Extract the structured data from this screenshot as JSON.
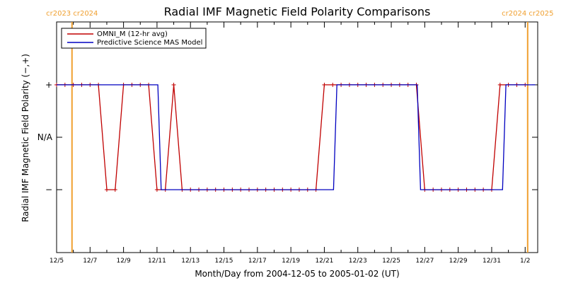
{
  "chart_data": {
    "type": "line",
    "title": "Radial IMF Magnetic Field Polarity Comparisons",
    "xlabel": "Month/Day from 2004-12-05 to 2005-01-02 (UT)",
    "ylabel": "Radial IMF Magnetic Field Polarity (−,+)",
    "x_tick_labels": [
      "12/5",
      "12/7",
      "12/9",
      "12/11",
      "12/13",
      "12/15",
      "12/17",
      "12/19",
      "12/21",
      "12/23",
      "12/25",
      "12/27",
      "12/29",
      "12/31",
      "1/2"
    ],
    "x_tick_days": [
      0,
      2,
      4,
      6,
      8,
      10,
      12,
      14,
      16,
      18,
      20,
      22,
      24,
      26,
      28
    ],
    "xlim_days": [
      0,
      28.75
    ],
    "y_tick_labels": [
      "+",
      "N/A",
      "−"
    ],
    "y_tick_values": [
      1,
      0,
      -1
    ],
    "ylim": [
      -2.2,
      2.2
    ],
    "carrington_markers": [
      {
        "label": "cr2023 cr2024",
        "day": 0.92
      },
      {
        "label": "cr2024 cr2025",
        "day": 28.15
      }
    ],
    "series": [
      {
        "name": "OMNI_M (12-hr avg)",
        "color": "#c00000",
        "marker": "+",
        "x": [
          0,
          0.5,
          1,
          1.5,
          2,
          2.5,
          3,
          3.5,
          4,
          4.5,
          5,
          5.5,
          6,
          6.5,
          7,
          7.5,
          8,
          8.5,
          9,
          9.5,
          10,
          10.5,
          11,
          11.5,
          12,
          12.5,
          13,
          13.5,
          14,
          14.5,
          15,
          15.5,
          16,
          16.5,
          17,
          17.5,
          18,
          18.5,
          19,
          19.5,
          20,
          20.5,
          21,
          21.5,
          22,
          22.5,
          23,
          23.5,
          24,
          24.5,
          25,
          25.5,
          26,
          26.5,
          27,
          27.5,
          28
        ],
        "y": [
          1,
          1,
          1,
          1,
          1,
          1,
          -1,
          -1,
          1,
          1,
          1,
          1,
          -1,
          -1,
          1,
          -1,
          -1,
          -1,
          -1,
          -1,
          -1,
          -1,
          -1,
          -1,
          -1,
          -1,
          -1,
          -1,
          -1,
          -1,
          -1,
          -1,
          1,
          1,
          1,
          1,
          1,
          1,
          1,
          1,
          1,
          1,
          1,
          1,
          -1,
          -1,
          -1,
          -1,
          -1,
          -1,
          -1,
          -1,
          -1,
          1,
          1,
          1,
          1
        ]
      },
      {
        "name": "Predictive Science MAS Model",
        "color": "#0000c0",
        "x": [
          0.0,
          6.05,
          6.25,
          16.55,
          16.75,
          21.55,
          21.75,
          26.65,
          26.85,
          28.6
        ],
        "y": [
          1,
          1,
          -1,
          -1,
          1,
          1,
          -1,
          -1,
          1,
          1
        ]
      }
    ],
    "legend_position": "top-left",
    "grid": false
  }
}
